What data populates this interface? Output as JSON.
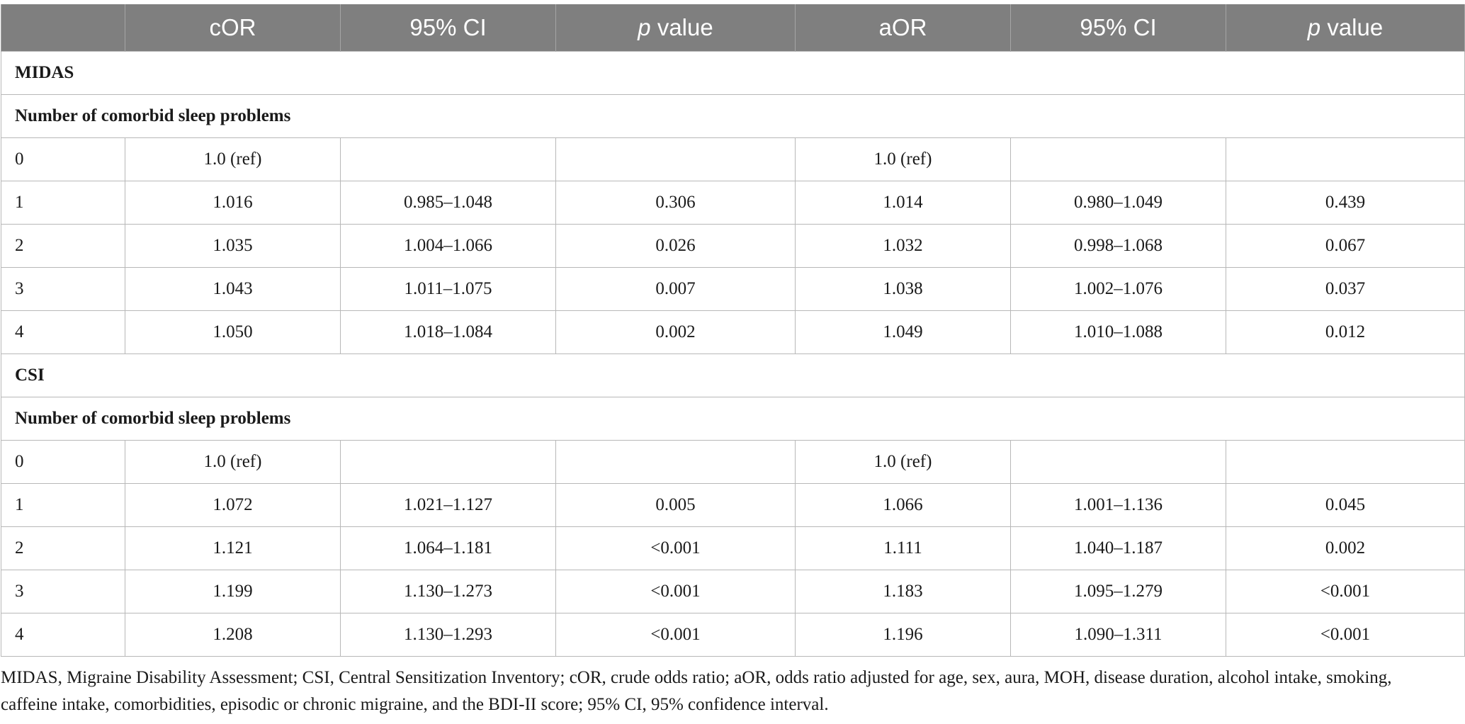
{
  "table": {
    "headers": [
      "",
      "cOR",
      "95% CI",
      "value",
      "aOR",
      "95% CI",
      "value"
    ],
    "p_prefix": "p",
    "sections": [
      {
        "title": "MIDAS",
        "subtitle": "Number of comorbid sleep problems",
        "rows": [
          [
            "0",
            "1.0 (ref)",
            "",
            "",
            "1.0 (ref)",
            "",
            ""
          ],
          [
            "1",
            "1.016",
            "0.985–1.048",
            "0.306",
            "1.014",
            "0.980–1.049",
            "0.439"
          ],
          [
            "2",
            "1.035",
            "1.004–1.066",
            "0.026",
            "1.032",
            "0.998–1.068",
            "0.067"
          ],
          [
            "3",
            "1.043",
            "1.011–1.075",
            "0.007",
            "1.038",
            "1.002–1.076",
            "0.037"
          ],
          [
            "4",
            "1.050",
            "1.018–1.084",
            "0.002",
            "1.049",
            "1.010–1.088",
            "0.012"
          ]
        ]
      },
      {
        "title": "CSI",
        "subtitle": "Number of comorbid sleep problems",
        "rows": [
          [
            "0",
            "1.0 (ref)",
            "",
            "",
            "1.0 (ref)",
            "",
            ""
          ],
          [
            "1",
            "1.072",
            "1.021–1.127",
            "0.005",
            "1.066",
            "1.001–1.136",
            "0.045"
          ],
          [
            "2",
            "1.121",
            "1.064–1.181",
            "<0.001",
            "1.111",
            "1.040–1.187",
            "0.002"
          ],
          [
            "3",
            "1.199",
            "1.130–1.273",
            "<0.001",
            "1.183",
            "1.095–1.279",
            "<0.001"
          ],
          [
            "4",
            "1.208",
            "1.130–1.293",
            "<0.001",
            "1.196",
            "1.090–1.311",
            "<0.001"
          ]
        ]
      }
    ]
  },
  "footnote": "MIDAS, Migraine Disability Assessment; CSI, Central Sensitization Inventory; cOR, crude odds ratio; aOR, odds ratio adjusted for age, sex, aura, MOH, disease duration, alcohol intake, smoking, caffeine intake, comorbidities, episodic or chronic migraine, and the BDI-II score; 95% CI, 95% confidence interval."
}
